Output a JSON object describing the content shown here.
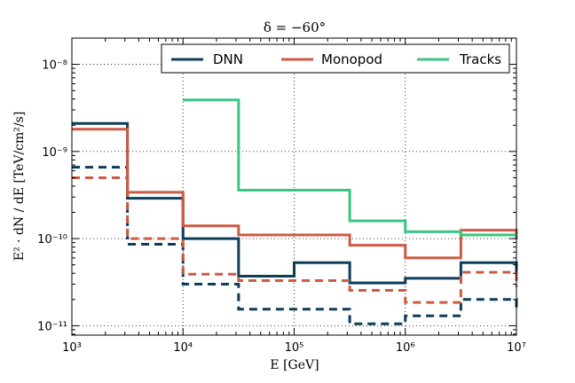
{
  "chart_data": {
    "type": "line",
    "step": true,
    "title": "δ = −60°",
    "xlabel": "E [GeV]",
    "ylabel": "E² · dN / dE [TeV/cm²/s]",
    "xscale": "log",
    "yscale": "log",
    "xlim": [
      1000,
      10000000
    ],
    "ylim": [
      7.8e-12,
      2e-08
    ],
    "grid": true,
    "legend": "top",
    "x_tick_labels": [
      "10³",
      "10⁴",
      "10⁵",
      "10⁶",
      "10⁷"
    ],
    "y_tick_labels": [
      "10⁻¹¹",
      "10⁻¹⁰",
      "10⁻⁹",
      "10⁻⁸"
    ],
    "bin_edges": [
      1000,
      3162,
      10000,
      31623,
      100000,
      316228,
      1000000,
      3162278,
      10000000
    ],
    "series": [
      {
        "name": "DNN",
        "color": "#0e3d59",
        "style": "solid",
        "values": [
          2.1e-09,
          2.9e-10,
          1e-10,
          3.7e-11,
          5.3e-11,
          3.1e-11,
          3.5e-11,
          5.3e-11,
          3.3e-11
        ]
      },
      {
        "name": "DNN",
        "color": "#0e3d59",
        "style": "dashed",
        "values": [
          6.6e-10,
          8.6e-11,
          3e-11,
          1.55e-11,
          1.55e-11,
          1.05e-11,
          1.3e-11,
          2e-11,
          1.6e-11
        ]
      },
      {
        "name": "Monopod",
        "color": "#cc5b45",
        "style": "solid",
        "values": [
          1.8e-09,
          3.4e-10,
          1.4e-10,
          1.1e-10,
          1.1e-10,
          8.4e-11,
          6e-11,
          1.25e-10,
          9.8e-11
        ]
      },
      {
        "name": "Monopod",
        "color": "#cc5b45",
        "style": "dashed",
        "values": [
          5e-10,
          1e-10,
          3.9e-11,
          3.3e-11,
          3.3e-11,
          2.55e-11,
          1.85e-11,
          4.1e-11,
          2.8e-11
        ]
      },
      {
        "name": "Tracks",
        "color": "#3cc482",
        "style": "solid",
        "values": [
          null,
          null,
          3.9e-09,
          3.6e-10,
          3.6e-10,
          1.6e-10,
          1.2e-10,
          1.1e-10,
          1.05e-10
        ]
      }
    ],
    "legend_entries": [
      {
        "name": "DNN",
        "color": "#0e3d59"
      },
      {
        "name": "Monopod",
        "color": "#cc5b45"
      },
      {
        "name": "Tracks",
        "color": "#3cc482"
      }
    ]
  }
}
